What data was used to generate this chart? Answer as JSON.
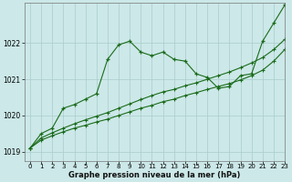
{
  "xlabel": "Graphe pression niveau de la mer (hPa)",
  "background_color": "#cce8e8",
  "grid_color": "#aacccc",
  "line_color": "#1a6b1a",
  "xlim": [
    -0.5,
    23
  ],
  "ylim": [
    1018.75,
    1023.1
  ],
  "yticks": [
    1019,
    1020,
    1021,
    1022
  ],
  "xticks": [
    0,
    1,
    2,
    3,
    4,
    5,
    6,
    7,
    8,
    9,
    10,
    11,
    12,
    13,
    14,
    15,
    16,
    17,
    18,
    19,
    20,
    21,
    22,
    23
  ],
  "series1": [
    1019.1,
    1019.5,
    1019.65,
    1020.2,
    1020.3,
    1020.45,
    1020.6,
    1021.55,
    1021.95,
    1022.05,
    1021.75,
    1021.65,
    1021.75,
    1021.55,
    1021.5,
    1021.15,
    1021.05,
    1020.75,
    1020.8,
    1021.1,
    1021.15,
    1022.05,
    1022.55,
    1023.05
  ],
  "series2": [
    1019.1,
    1019.38,
    1019.52,
    1019.65,
    1019.77,
    1019.88,
    1019.98,
    1020.08,
    1020.2,
    1020.32,
    1020.44,
    1020.55,
    1020.65,
    1020.72,
    1020.82,
    1020.9,
    1021.0,
    1021.1,
    1021.2,
    1021.32,
    1021.45,
    1021.6,
    1021.82,
    1022.1
  ],
  "series3": [
    1019.1,
    1019.32,
    1019.44,
    1019.55,
    1019.65,
    1019.73,
    1019.82,
    1019.9,
    1020.0,
    1020.1,
    1020.2,
    1020.28,
    1020.38,
    1020.45,
    1020.55,
    1020.63,
    1020.72,
    1020.8,
    1020.88,
    1020.98,
    1021.1,
    1021.25,
    1021.5,
    1021.82
  ]
}
